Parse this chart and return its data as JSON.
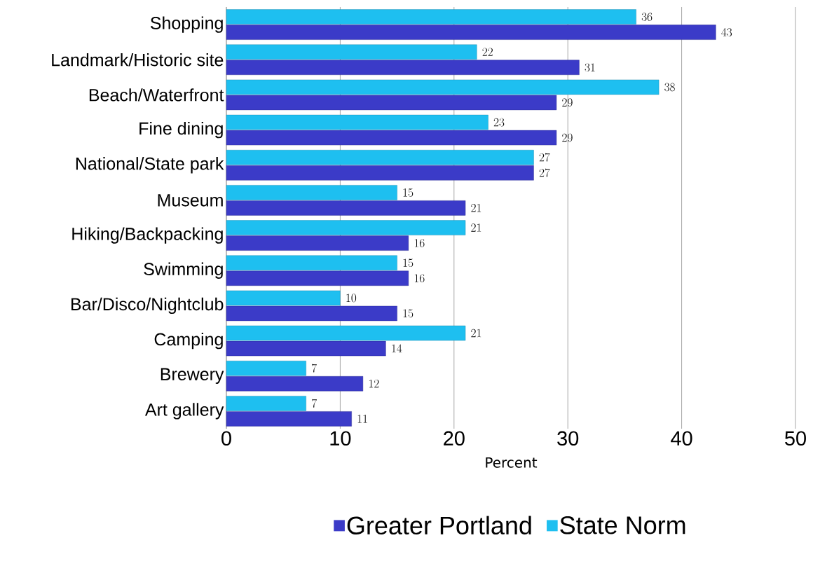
{
  "chart_data": {
    "type": "bar",
    "orientation": "horizontal",
    "categories": [
      "Shopping",
      "Landmark/Historic site",
      "Beach/Waterfront",
      "Fine dining",
      "National/State park",
      "Museum",
      "Hiking/Backpacking",
      "Swimming",
      "Bar/Disco/Nightclub",
      "Camping",
      "Brewery",
      "Art gallery"
    ],
    "series": [
      {
        "name": "Greater Portland",
        "color": "#3b3bc8",
        "values": [
          43,
          31,
          29,
          29,
          27,
          21,
          16,
          16,
          15,
          14,
          12,
          11
        ]
      },
      {
        "name": "State Norm",
        "color": "#1ebff0",
        "values": [
          36,
          22,
          38,
          23,
          27,
          15,
          21,
          15,
          10,
          21,
          7,
          7
        ]
      }
    ],
    "xlabel": "Percent",
    "xlim": [
      0,
      50
    ],
    "xticks": [
      0,
      10,
      20,
      30,
      40,
      50
    ],
    "grid": "x",
    "legend": "bottom",
    "data_labels": true
  }
}
